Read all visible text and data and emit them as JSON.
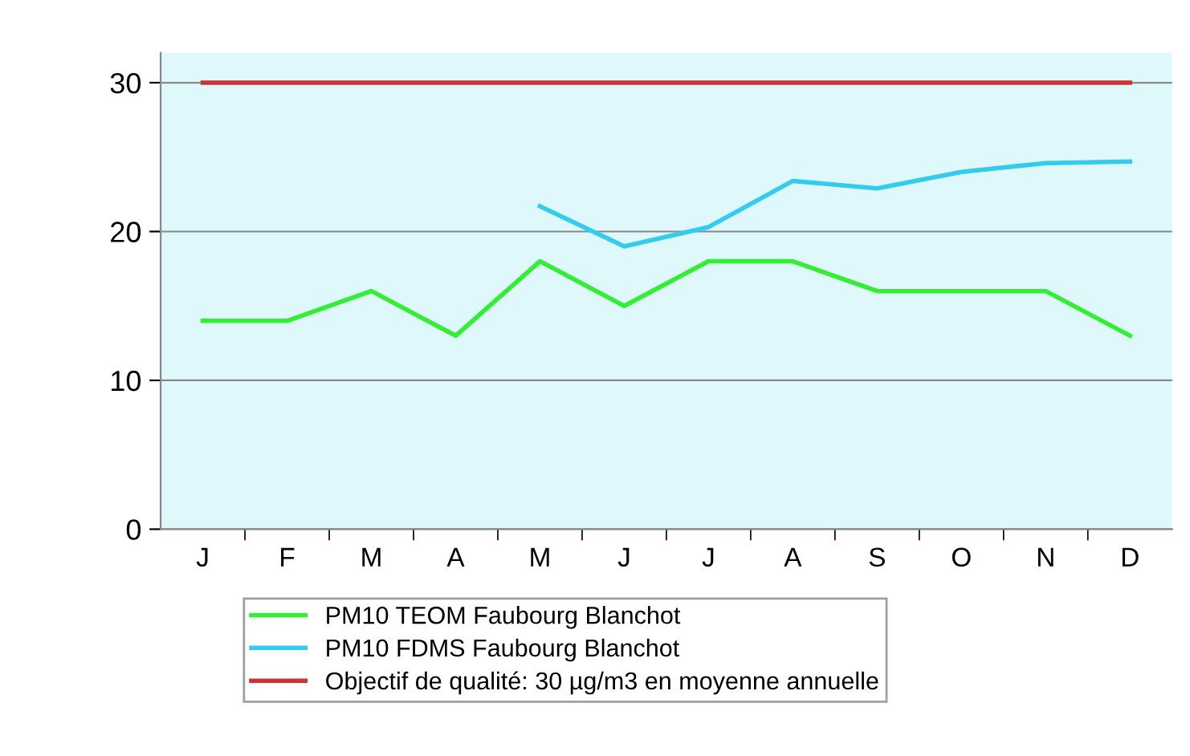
{
  "chart_data": {
    "type": "line",
    "categories": [
      "J",
      "F",
      "M",
      "A",
      "M",
      "J",
      "J",
      "A",
      "S",
      "O",
      "N",
      "D"
    ],
    "series": [
      {
        "name": "PM10 TEOM Faubourg Blanchot",
        "color": "#33ee33",
        "values": [
          14,
          14,
          16,
          13,
          18,
          15,
          18,
          18,
          16,
          16,
          16,
          13
        ]
      },
      {
        "name": "PM10 FDMS Faubourg Blanchot",
        "color": "#33ccee",
        "values": [
          null,
          null,
          null,
          null,
          21.7,
          19,
          20.3,
          23.4,
          22.9,
          24,
          24.6,
          24.7
        ]
      },
      {
        "name": "Objectif de qualité: 30 µg/m3 en moyenne annuelle",
        "color": "#cc3333",
        "values": [
          30,
          30,
          30,
          30,
          30,
          30,
          30,
          30,
          30,
          30,
          30,
          30
        ]
      }
    ],
    "ylim": [
      0,
      32
    ],
    "yticks": [
      0,
      10,
      20,
      30
    ],
    "grid": "y",
    "legend": "bottom",
    "marker": "none",
    "line_style": "solid"
  }
}
